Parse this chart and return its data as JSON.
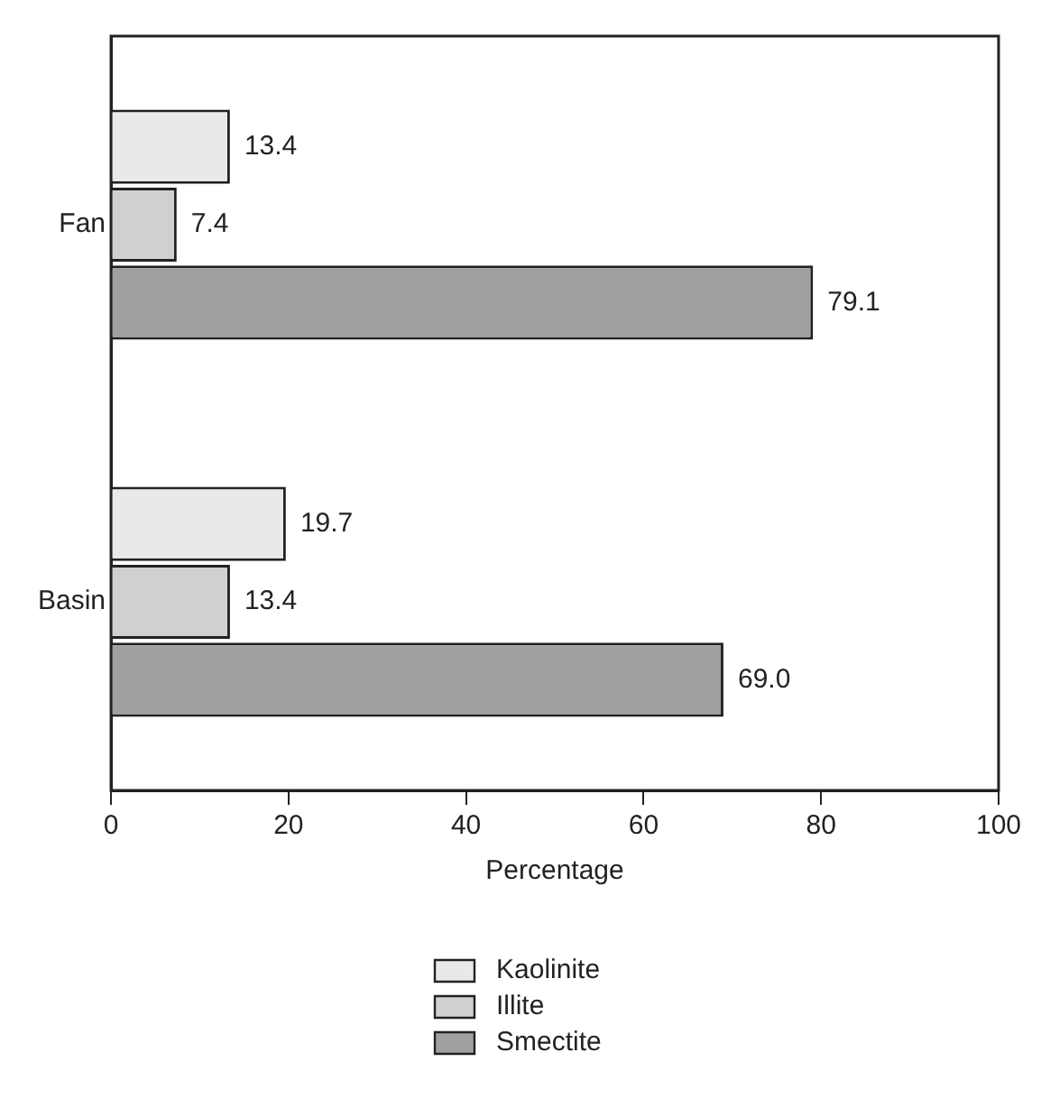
{
  "chart_data": {
    "type": "bar",
    "orientation": "horizontal",
    "categories": [
      "Fan",
      "Basin"
    ],
    "series": [
      {
        "name": "Kaolinite",
        "color": "#e9e9e9",
        "values": [
          13.4,
          19.7
        ],
        "value_labels": [
          "13.4",
          "19.7"
        ]
      },
      {
        "name": "Illite",
        "color": "#d0d0d0",
        "values": [
          7.4,
          13.4
        ],
        "value_labels": [
          "7.4",
          "13.4"
        ]
      },
      {
        "name": "Smectite",
        "color": "#a0a0a0",
        "values": [
          79.1,
          69.0
        ],
        "value_labels": [
          "79.1",
          "69.0"
        ]
      }
    ],
    "xlabel": "Percentage",
    "xlim": [
      0,
      100
    ],
    "xticks": [
      0,
      20,
      40,
      60,
      80,
      100
    ],
    "grid": false,
    "legend": "bottom"
  }
}
